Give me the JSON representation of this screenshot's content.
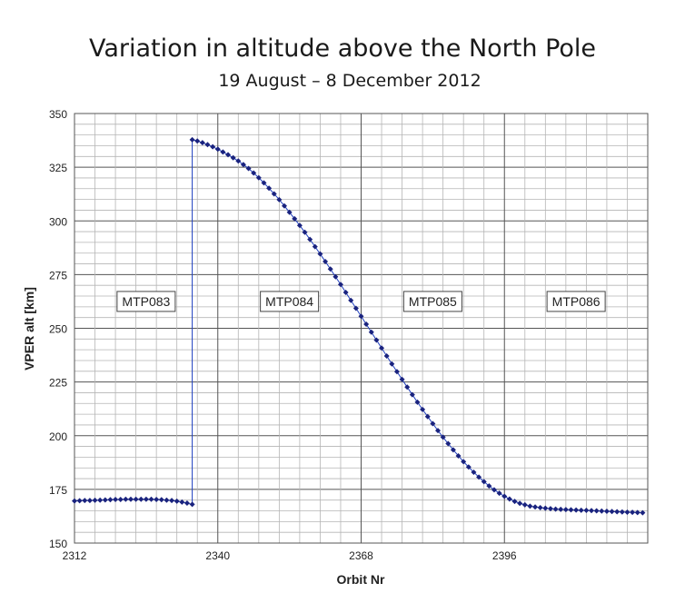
{
  "chart_data": {
    "type": "scatter",
    "title": "Variation in altitude above the North Pole",
    "subtitle": "19 August – 8 December 2012",
    "xlabel": "Orbit Nr",
    "ylabel": "VPER alt [km]",
    "xlim": [
      2312,
      2424
    ],
    "ylim": [
      150,
      350
    ],
    "xticks": [
      2312,
      2340,
      2368,
      2396
    ],
    "yticks": [
      150,
      175,
      200,
      225,
      250,
      275,
      300,
      325,
      350
    ],
    "grid": true,
    "legend": "none",
    "marker_color": "#1a237e",
    "line_color": "#1f3fbf",
    "regions": [
      "MTP083",
      "MTP084",
      "MTP085",
      "MTP086"
    ],
    "series": [
      {
        "x": [
          2312,
          2313,
          2314,
          2315,
          2316,
          2317,
          2318,
          2319,
          2320,
          2321,
          2322,
          2323,
          2324,
          2325,
          2326,
          2327,
          2328,
          2329,
          2330,
          2331,
          2332,
          2333,
          2334,
          2335,
          2335,
          2336,
          2337,
          2338,
          2339,
          2340,
          2341,
          2342,
          2343,
          2344,
          2345,
          2346,
          2347,
          2348,
          2349,
          2350,
          2351,
          2352,
          2353,
          2354,
          2355,
          2356,
          2357,
          2358,
          2359,
          2360,
          2361,
          2362,
          2363,
          2364,
          2365,
          2366,
          2367,
          2368,
          2369,
          2370,
          2371,
          2372,
          2373,
          2374,
          2375,
          2376,
          2377,
          2378,
          2379,
          2380,
          2381,
          2382,
          2383,
          2384,
          2385,
          2386,
          2387,
          2388,
          2389,
          2390,
          2391,
          2392,
          2393,
          2394,
          2395,
          2396,
          2397,
          2398,
          2399,
          2400,
          2401,
          2402,
          2403,
          2404,
          2405,
          2406,
          2407,
          2408,
          2409,
          2410,
          2411,
          2412,
          2413,
          2414,
          2415,
          2416,
          2417,
          2418,
          2419,
          2420,
          2421,
          2422,
          2423
        ],
        "y": [
          169.6,
          169.7,
          169.8,
          169.8,
          169.9,
          170.0,
          170.1,
          170.2,
          170.3,
          170.3,
          170.4,
          170.4,
          170.4,
          170.4,
          170.4,
          170.4,
          170.3,
          170.2,
          170.0,
          169.8,
          169.5,
          169.1,
          168.6,
          168.0,
          337.8,
          337.2,
          336.4,
          335.5,
          334.5,
          333.4,
          332.1,
          330.8,
          329.4,
          327.9,
          326.2,
          324.4,
          322.3,
          320.1,
          317.7,
          315.2,
          312.6,
          309.9,
          307.0,
          304.0,
          301.0,
          297.9,
          294.7,
          291.4,
          288.0,
          284.6,
          281.1,
          277.6,
          274.0,
          270.4,
          266.7,
          263.0,
          259.3,
          255.6,
          251.9,
          248.2,
          244.5,
          240.8,
          237.1,
          233.4,
          229.8,
          226.2,
          222.6,
          219.1,
          215.6,
          212.2,
          208.9,
          205.6,
          202.4,
          199.3,
          196.3,
          193.4,
          190.6,
          187.9,
          185.4,
          183.0,
          180.7,
          178.6,
          176.6,
          174.8,
          173.2,
          171.8,
          170.5,
          169.4,
          168.5,
          167.8,
          167.2,
          166.8,
          166.5,
          166.2,
          166.0,
          165.8,
          165.7,
          165.6,
          165.5,
          165.4,
          165.3,
          165.2,
          165.1,
          165.0,
          164.9,
          164.8,
          164.7,
          164.6,
          164.5,
          164.4,
          164.3,
          164.2,
          164.1
        ]
      }
    ]
  }
}
